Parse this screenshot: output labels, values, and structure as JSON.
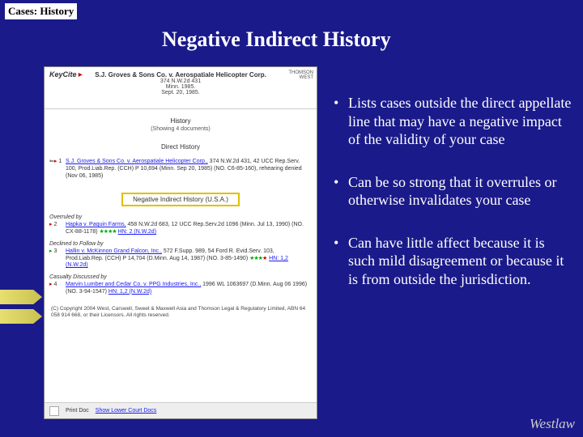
{
  "breadcrumb": "Cases: History",
  "title": "Negative Indirect History",
  "screenshot": {
    "keycite_logo": "KeyCite",
    "thomson": "THOMSON",
    "west": "WEST",
    "case_title": "S.J. Groves & Sons Co. v. Aerospatiale Helicopter Corp.",
    "case_cite1": "374 N.W.2d 431",
    "case_cite2": "Minn. 1985.",
    "case_cite3": "Sept. 20, 1985.",
    "history_heading": "History",
    "showing_docs": "(Showing 4 documents)",
    "direct_history_label": "Direct History",
    "direct_item_link": "S.J. Groves & Sons Co. v. Aerospatiale Helicopter Corp.,",
    "direct_item_rest": " 374 N.W.2d 431, 42 UCC Rep.Serv. 100, Prod.Liab.Rep. (CCH) P 10,694 (Minn. Sep 20, 1985) (NO. C6-85-160), rehearing denied (Nov 06, 1985)",
    "nih_label": "Negative Indirect History (U.S.A.)",
    "overruled_by": "Overruled by",
    "item2_link": "Hapka v. Paquin Farms,",
    "item2_rest": " 458 N.W.2d 683, 12 UCC Rep.Serv.2d 1096 (Minn. Jul 13, 1990) (NO. CX-88-1178) ",
    "item2_hn": "HN: 2 (N.W.2d)",
    "declined_to_follow": "Declined to Follow by",
    "item3_link": "Hallin v. McKinnon Grand Falcon, Inc.,",
    "item3_rest": " 572 F.Supp. 989, 54 Ford R. Evid.Serv. 103, Prod.Liab.Rep. (CCH) P 14,704 (D.Minn. Aug 14, 1987) (NO. 3-85-1490) ",
    "item3_hn": "HN: 1,2 (N.W.2d)",
    "casualty_discussed": "Casualty Discussed by",
    "item4_link": "Marvin Lumber and Cedar Co. v. PPG Industries, Inc.,",
    "item4_rest": " 1996 WL 1063697 (D.Minn. Aug 06 1996) (NO. 3-94-1547) ",
    "item4_hn": "HN: 1,2 (N.W.2d)",
    "copyright": "(C) Copyright 2004 West, Carswell, Sweet & Maxwell Asia and Thomson Legal & Regulatory Limited, ABN 64 058 914 668, or their Licensors. All rights reserved.",
    "footer_print": "Print Doc",
    "footer_link": "Show Lower Court Docs"
  },
  "bullets": [
    "Lists cases outside the direct appellate line that may have a negative impact of the validity of your case",
    "Can be so strong that it overrules or otherwise invalidates your case",
    "Can have little affect because it is such mild disagreement or because it is from outside the jurisdiction."
  ],
  "westlaw": "Westlaw"
}
